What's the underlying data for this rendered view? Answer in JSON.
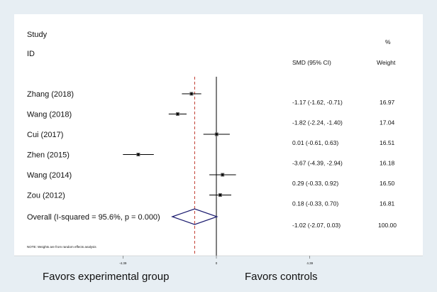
{
  "chart_data": {
    "type": "forest",
    "header": {
      "study_line1": "Study",
      "study_line2": "ID",
      "smd_label": "SMD (95% CI)",
      "weight_line1": "%",
      "weight_line2": "Weight"
    },
    "studies": [
      {
        "name": "Zhang  (2018)",
        "smd": -1.17,
        "lo": -1.62,
        "hi": -0.71,
        "ci_text": "-1.17 (-1.62, -0.71)",
        "weight": "16.97"
      },
      {
        "name": "Wang  (2018)",
        "smd": -1.82,
        "lo": -2.24,
        "hi": -1.4,
        "ci_text": "-1.82 (-2.24, -1.40)",
        "weight": "17.04"
      },
      {
        "name": "Cui  (2017)",
        "smd": 0.01,
        "lo": -0.61,
        "hi": 0.63,
        "ci_text": "0.01 (-0.61, 0.63)",
        "weight": "16.51"
      },
      {
        "name": "Zhen  (2015)",
        "smd": -3.67,
        "lo": -4.39,
        "hi": -2.94,
        "ci_text": "-3.67 (-4.39, -2.94)",
        "weight": "16.18"
      },
      {
        "name": "Wang  (2014)",
        "smd": 0.29,
        "lo": -0.33,
        "hi": 0.92,
        "ci_text": "0.29 (-0.33, 0.92)",
        "weight": "16.50"
      },
      {
        "name": "Zou  (2012)",
        "smd": 0.18,
        "lo": -0.33,
        "hi": 0.7,
        "ci_text": "0.18 (-0.33, 0.70)",
        "weight": "16.81"
      }
    ],
    "overall": {
      "name": "Overall  (I-squared = 95.6%, p = 0.000)",
      "smd": -1.02,
      "lo": -2.07,
      "hi": 0.03,
      "ci_text": "-1.02 (-2.07, 0.03)",
      "weight": "100.00"
    },
    "note": "NOTE: Weights are from random effects analysis",
    "x_ticks": [
      {
        "value": -4.39,
        "label": "-4.39"
      },
      {
        "value": 0,
        "label": "0"
      },
      {
        "value": 4.39,
        "label": "4.39"
      }
    ],
    "xlim": [
      -4.39,
      4.39
    ],
    "favors_left": "Favors experimental group",
    "favors_right": "Favors controls",
    "colors": {
      "overall_line": "#c0392b",
      "diamond": "#1a1a6e",
      "marker": "#000000"
    }
  }
}
